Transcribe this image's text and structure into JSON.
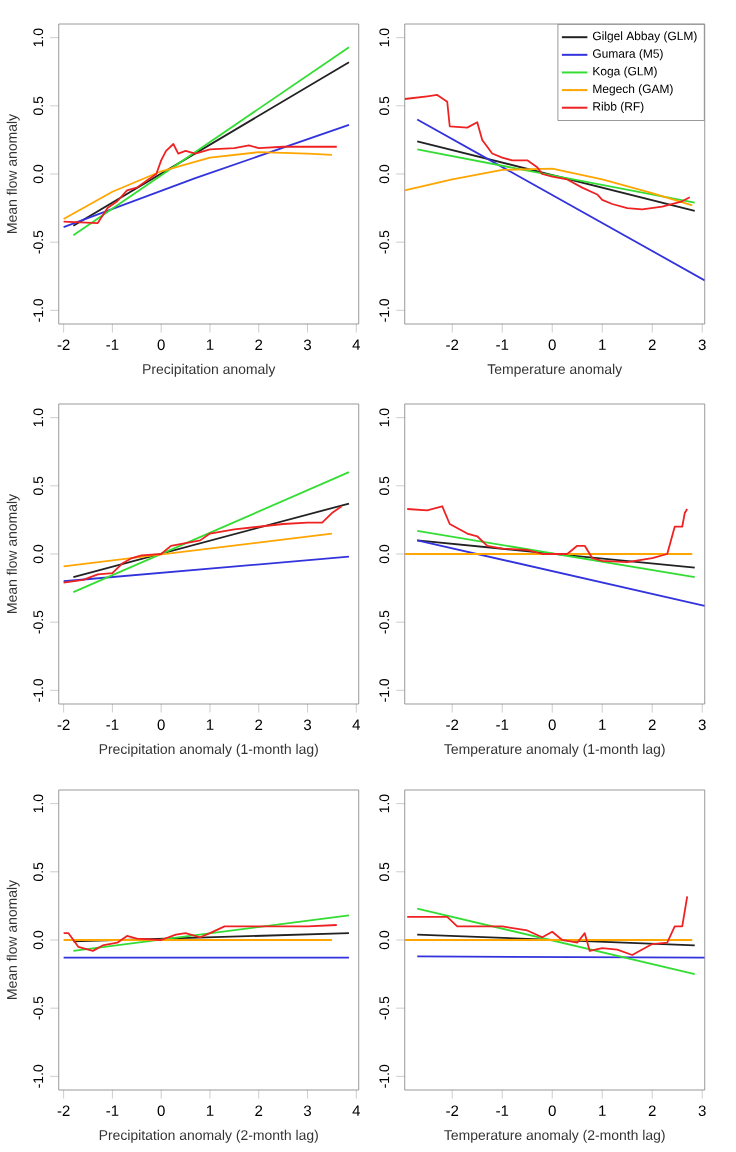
{
  "chart_data": [
    {
      "type": "line",
      "xlabel": "Precipitation anomaly",
      "ylabel": "Mean flow anomaly",
      "xlim": [
        -2.1,
        4.05
      ],
      "ylim": [
        -1.1,
        1.1
      ],
      "xticks": [
        -2,
        -1,
        0,
        1,
        2,
        3,
        4
      ],
      "yticks": [
        {
          "value": -1,
          "label": "-1.0"
        },
        {
          "value": -0.5,
          "label": "-0.5"
        },
        {
          "value": 0,
          "label": "0.0"
        },
        {
          "value": 0.5,
          "label": "0.5"
        },
        {
          "value": 1,
          "label": "1.0"
        }
      ],
      "series": [
        {
          "color": "#222222",
          "x": [
            -1.8,
            3.85
          ],
          "values": [
            -0.38,
            0.82
          ]
        },
        {
          "color": "#3333dd",
          "x": [
            -2,
            0.7,
            3.85
          ],
          "values": [
            -0.39,
            -0.03,
            0.36
          ]
        },
        {
          "color": "#33dd33",
          "x": [
            -1.8,
            3.85
          ],
          "values": [
            -0.45,
            0.93
          ]
        },
        {
          "color": "#ffa500",
          "x": [
            -2,
            -1,
            0,
            1,
            2,
            3,
            3.5
          ],
          "values": [
            -0.33,
            -0.13,
            0.02,
            0.12,
            0.16,
            0.15,
            0.14
          ]
        },
        {
          "color": "#ee2222",
          "x": [
            -2,
            -1.3,
            -1.1,
            -0.9,
            -0.7,
            -0.5,
            -0.3,
            -0.1,
            0,
            0.1,
            0.25,
            0.35,
            0.5,
            0.7,
            1,
            1.5,
            1.8,
            2,
            2.5,
            3,
            3.6
          ],
          "values": [
            -0.35,
            -0.36,
            -0.25,
            -0.2,
            -0.12,
            -0.1,
            -0.05,
            0.0,
            0.1,
            0.17,
            0.22,
            0.15,
            0.17,
            0.15,
            0.18,
            0.19,
            0.21,
            0.19,
            0.2,
            0.2,
            0.2
          ]
        }
      ]
    },
    {
      "type": "line",
      "xlabel": "Temperature anomaly",
      "xlim": [
        -2.95,
        3.05
      ],
      "ylim": [
        -1.1,
        1.1
      ],
      "xticks": [
        -2,
        -1,
        0,
        1,
        2,
        3
      ],
      "yticks": [
        {
          "value": -1,
          "label": "-1.0"
        },
        {
          "value": -0.5,
          "label": "-0.5"
        },
        {
          "value": 0,
          "label": "0.0"
        },
        {
          "value": 0.5,
          "label": "0.5"
        },
        {
          "value": 1,
          "label": "1.0"
        }
      ],
      "legend": "top right",
      "series": [
        {
          "name": "Gilgel Abbay (GLM)",
          "color": "#222222",
          "x": [
            -2.7,
            2.85
          ],
          "values": [
            0.24,
            -0.27
          ]
        },
        {
          "name": "Gumara (M5)",
          "color": "#3333dd",
          "x": [
            -2.7,
            3.05
          ],
          "values": [
            0.4,
            -0.78
          ]
        },
        {
          "name": "Koga (GLM)",
          "color": "#33dd33",
          "x": [
            -2.7,
            2.85
          ],
          "values": [
            0.18,
            -0.21
          ]
        },
        {
          "name": "Megech (GAM)",
          "color": "#ffa500",
          "x": [
            -2.95,
            -2,
            -1,
            0,
            1,
            2,
            2.8
          ],
          "values": [
            -0.12,
            -0.04,
            0.03,
            0.04,
            -0.04,
            -0.14,
            -0.23
          ]
        },
        {
          "name": "Ribb (RF)",
          "color": "#ee2222",
          "x": [
            -2.95,
            -2.5,
            -2.3,
            -2.1,
            -2.05,
            -1.7,
            -1.5,
            -1.4,
            -1.2,
            -1,
            -0.8,
            -0.5,
            -0.3,
            -0.2,
            0,
            0.3,
            0.6,
            0.9,
            1,
            1.2,
            1.5,
            1.8,
            2.2,
            2.6,
            2.75
          ],
          "values": [
            0.55,
            0.57,
            0.58,
            0.53,
            0.35,
            0.34,
            0.38,
            0.25,
            0.15,
            0.12,
            0.1,
            0.1,
            0.05,
            0.0,
            -0.02,
            -0.04,
            -0.1,
            -0.15,
            -0.19,
            -0.22,
            -0.25,
            -0.26,
            -0.24,
            -0.2,
            -0.17
          ]
        }
      ]
    },
    {
      "type": "line",
      "xlabel": "Precipitation anomaly (1-month lag)",
      "ylabel": "Mean flow anomaly",
      "xlim": [
        -2.1,
        4.05
      ],
      "ylim": [
        -1.1,
        1.1
      ],
      "xticks": [
        -2,
        -1,
        0,
        1,
        2,
        3,
        4
      ],
      "yticks": [
        {
          "value": -1,
          "label": "-1.0"
        },
        {
          "value": -0.5,
          "label": "-0.5"
        },
        {
          "value": 0,
          "label": "0.0"
        },
        {
          "value": 0.5,
          "label": "0.5"
        },
        {
          "value": 1,
          "label": "1.0"
        }
      ],
      "series": [
        {
          "color": "#222222",
          "x": [
            -1.8,
            3.85
          ],
          "values": [
            -0.17,
            0.37
          ]
        },
        {
          "color": "#3333dd",
          "x": [
            -2,
            3.85
          ],
          "values": [
            -0.2,
            -0.02
          ]
        },
        {
          "color": "#33dd33",
          "x": [
            -1.8,
            3.85
          ],
          "values": [
            -0.28,
            0.6
          ]
        },
        {
          "color": "#ffa500",
          "x": [
            -2,
            3.5
          ],
          "values": [
            -0.09,
            0.15
          ]
        },
        {
          "color": "#ee2222",
          "x": [
            -2,
            -1.6,
            -1.3,
            -1.0,
            -0.8,
            -0.6,
            -0.4,
            0,
            0.2,
            0.5,
            0.8,
            1.0,
            1.5,
            2.0,
            2.5,
            3.0,
            3.3,
            3.5,
            3.7
          ],
          "values": [
            -0.21,
            -0.19,
            -0.15,
            -0.14,
            -0.07,
            -0.03,
            -0.01,
            0.0,
            0.06,
            0.08,
            0.1,
            0.15,
            0.18,
            0.2,
            0.22,
            0.23,
            0.23,
            0.3,
            0.35
          ]
        }
      ]
    },
    {
      "type": "line",
      "xlabel": "Temperature anomaly (1-month lag)",
      "xlim": [
        -2.95,
        3.05
      ],
      "ylim": [
        -1.1,
        1.1
      ],
      "xticks": [
        -2,
        -1,
        0,
        1,
        2,
        3
      ],
      "yticks": [
        {
          "value": -1,
          "label": "-1.0"
        },
        {
          "value": -0.5,
          "label": "-0.5"
        },
        {
          "value": 0,
          "label": "0.0"
        },
        {
          "value": 0.5,
          "label": "0.5"
        },
        {
          "value": 1,
          "label": "1.0"
        }
      ],
      "series": [
        {
          "color": "#222222",
          "x": [
            -2.7,
            2.85
          ],
          "values": [
            0.1,
            -0.1
          ]
        },
        {
          "color": "#3333dd",
          "x": [
            -2.7,
            3.05
          ],
          "values": [
            0.1,
            -0.38
          ]
        },
        {
          "color": "#33dd33",
          "x": [
            -2.7,
            2.85
          ],
          "values": [
            0.17,
            -0.17
          ]
        },
        {
          "color": "#ffa500",
          "x": [
            -2.95,
            2.8
          ],
          "values": [
            0.0,
            0.0
          ]
        },
        {
          "color": "#ee2222",
          "x": [
            -2.9,
            -2.5,
            -2.2,
            -2.05,
            -1.7,
            -1.5,
            -1.3,
            -1,
            -0.5,
            -0.2,
            0.3,
            0.5,
            0.65,
            0.8,
            1.0,
            1.5,
            2.0,
            2.3,
            2.45,
            2.6,
            2.65,
            2.7
          ],
          "values": [
            0.33,
            0.32,
            0.35,
            0.22,
            0.15,
            0.13,
            0.06,
            0.04,
            0.03,
            0.0,
            0.0,
            0.06,
            0.06,
            -0.03,
            -0.05,
            -0.06,
            -0.03,
            0.0,
            0.2,
            0.2,
            0.3,
            0.33
          ]
        }
      ]
    },
    {
      "type": "line",
      "xlabel": "Precipitation anomaly (2-month lag)",
      "ylabel": "Mean flow anomaly",
      "xlim": [
        -2.1,
        4.05
      ],
      "ylim": [
        -1.1,
        1.1
      ],
      "xticks": [
        -2,
        -1,
        0,
        1,
        2,
        3,
        4
      ],
      "yticks": [
        {
          "value": -1,
          "label": "-1.0"
        },
        {
          "value": -0.5,
          "label": "-0.5"
        },
        {
          "value": 0,
          "label": "0.0"
        },
        {
          "value": 0.5,
          "label": "0.5"
        },
        {
          "value": 1,
          "label": "1.0"
        }
      ],
      "series": [
        {
          "color": "#222222",
          "x": [
            -1.8,
            3.85
          ],
          "values": [
            -0.01,
            0.05
          ]
        },
        {
          "color": "#3333dd",
          "x": [
            -2,
            3.85
          ],
          "values": [
            -0.13,
            -0.13
          ]
        },
        {
          "color": "#33dd33",
          "x": [
            -1.8,
            3.85
          ],
          "values": [
            -0.08,
            0.18
          ]
        },
        {
          "color": "#ffa500",
          "x": [
            -2,
            3.5
          ],
          "values": [
            0.0,
            0.0
          ]
        },
        {
          "color": "#ee2222",
          "x": [
            -2,
            -1.9,
            -1.7,
            -1.4,
            -1.2,
            -0.9,
            -0.7,
            -0.5,
            0,
            0.3,
            0.5,
            0.8,
            1.0,
            1.3,
            2,
            3,
            3.6
          ],
          "values": [
            0.05,
            0.05,
            -0.05,
            -0.08,
            -0.04,
            -0.02,
            0.03,
            0.01,
            0.0,
            0.04,
            0.05,
            0.02,
            0.05,
            0.1,
            0.1,
            0.1,
            0.11
          ]
        }
      ]
    },
    {
      "type": "line",
      "xlabel": "Temperature anomaly (2-month lag)",
      "xlim": [
        -2.95,
        3.05
      ],
      "ylim": [
        -1.1,
        1.1
      ],
      "xticks": [
        -2,
        -1,
        0,
        1,
        2,
        3
      ],
      "yticks": [
        {
          "value": -1,
          "label": "-1.0"
        },
        {
          "value": -0.5,
          "label": "-0.5"
        },
        {
          "value": 0,
          "label": "0.0"
        },
        {
          "value": 0.5,
          "label": "0.5"
        },
        {
          "value": 1,
          "label": "1.0"
        }
      ],
      "series": [
        {
          "color": "#222222",
          "x": [
            -2.7,
            2.85
          ],
          "values": [
            0.04,
            -0.04
          ]
        },
        {
          "color": "#3333dd",
          "x": [
            -2.7,
            3.05
          ],
          "values": [
            -0.12,
            -0.13
          ]
        },
        {
          "color": "#33dd33",
          "x": [
            -2.7,
            2.85
          ],
          "values": [
            0.23,
            -0.25
          ]
        },
        {
          "color": "#ffa500",
          "x": [
            -2.95,
            2.8
          ],
          "values": [
            0.0,
            0.0
          ]
        },
        {
          "color": "#ee2222",
          "x": [
            -2.9,
            -2.1,
            -1.9,
            -1.5,
            -1,
            -0.5,
            -0.2,
            0,
            0.2,
            0.5,
            0.65,
            0.75,
            1.0,
            1.3,
            1.6,
            1.8,
            2.0,
            2.3,
            2.45,
            2.6,
            2.7
          ],
          "values": [
            0.17,
            0.17,
            0.1,
            0.1,
            0.1,
            0.07,
            0.02,
            0.06,
            0.0,
            -0.02,
            0.05,
            -0.08,
            -0.06,
            -0.07,
            -0.11,
            -0.07,
            -0.03,
            -0.02,
            0.1,
            0.1,
            0.32
          ]
        }
      ]
    }
  ]
}
